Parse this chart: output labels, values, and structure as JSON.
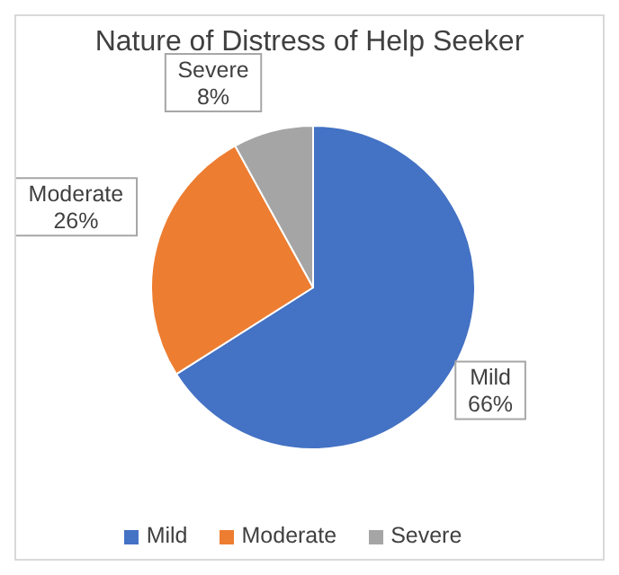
{
  "chart_data": {
    "type": "pie",
    "title": "Nature of Distress of Help Seeker",
    "categories": [
      "Mild",
      "Moderate",
      "Severe"
    ],
    "values": [
      66,
      26,
      8
    ],
    "colors": [
      "#4472c4",
      "#ed7d31",
      "#a5a5a5"
    ],
    "value_labels": [
      "66%",
      "26%",
      "8%"
    ],
    "legend": "bottom"
  }
}
